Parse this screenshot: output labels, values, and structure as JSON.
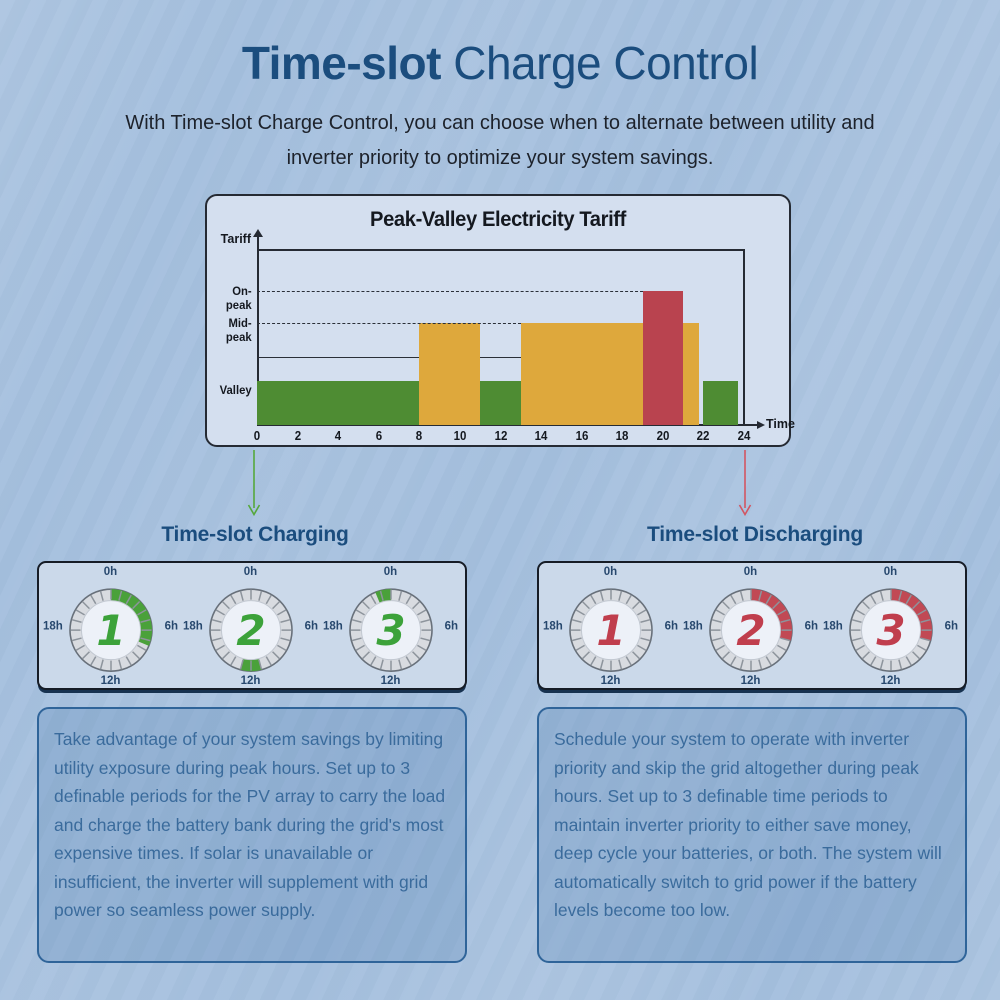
{
  "header": {
    "title_bold": "Time-slot",
    "title_rest": " Charge Control",
    "subtitle_line1": "With Time-slot Charge Control, you can choose when to alternate between utility and",
    "subtitle_line2": "inverter priority to optimize your system savings."
  },
  "chart": {
    "title": "Peak-Valley Electricity Tariff",
    "y_axis_label": "Tariff",
    "x_axis_label": "Time",
    "x_ticks": [
      "0",
      "2",
      "4",
      "6",
      "8",
      "10",
      "12",
      "14",
      "16",
      "18",
      "20",
      "22",
      "24"
    ]
  },
  "chart_data": {
    "type": "bar",
    "title": "Peak-Valley Electricity Tariff",
    "xlabel": "Time",
    "ylabel": "Tariff",
    "x_range": [
      0,
      24
    ],
    "level_labels": [
      "On-peak",
      "Mid-peak",
      "Valley"
    ],
    "level_fraction": {
      "valley": 0.25,
      "flat": 0.386,
      "mid-peak": 0.58,
      "on-peak": 0.764
    },
    "segments": [
      {
        "start": 0,
        "end": 8,
        "level": "valley",
        "color": "#4e8c33"
      },
      {
        "start": 8,
        "end": 11,
        "level": "mid-peak",
        "color": "#dea83c"
      },
      {
        "start": 11,
        "end": 13,
        "level": "valley",
        "color": "#4e8c33"
      },
      {
        "start": 13,
        "end": 19,
        "level": "mid-peak",
        "color": "#dea83c"
      },
      {
        "start": 19,
        "end": 21,
        "level": "on-peak",
        "color": "#b9434f"
      },
      {
        "start": 21,
        "end": 21.8,
        "level": "mid-peak",
        "color": "#dea83c"
      },
      {
        "start": 22,
        "end": 23.7,
        "level": "valley",
        "color": "#4e8c33"
      }
    ],
    "gridlines": [
      {
        "level": "on-peak",
        "from": 0,
        "to": 19,
        "style": "dashed"
      },
      {
        "level": "mid-peak",
        "from": 0,
        "to": 13,
        "style": "dashed"
      },
      {
        "level": "flat",
        "from": 0,
        "to": 8,
        "style": "solid"
      },
      {
        "level": "flat",
        "from": 11,
        "to": 13,
        "style": "solid"
      }
    ],
    "legend": false,
    "grid": "partial-dashed"
  },
  "charging": {
    "heading": "Time-slot Charging",
    "arrow_color": "#56a83c",
    "arc_color": "#4aa13a",
    "number_color": "#3ca23a",
    "dial_labels": {
      "top": "0h",
      "right": "6h",
      "bottom": "12h",
      "left": "18h"
    },
    "dials": [
      {
        "number": "1",
        "arc_start_h": 0,
        "arc_end_h": 7.5
      },
      {
        "number": "2",
        "arc_start_h": 11,
        "arc_end_h": 13
      },
      {
        "number": "3",
        "arc_start_h": 22.5,
        "arc_end_h": 24
      }
    ],
    "description": "Take advantage of your system savings by limiting utility exposure during peak hours. Set up to 3 definable periods for the PV array to carry the load and charge the battery bank during the grid's most expensive times. If solar is unavailable or insufficient, the inverter will supplement with grid power so seamless power supply."
  },
  "discharging": {
    "heading": "Time-slot Discharging",
    "arrow_color": "#d25562",
    "arc_color": "#c14954",
    "number_color": "#c03e4d",
    "dial_labels": {
      "top": "0h",
      "right": "6h",
      "bottom": "12h",
      "left": "18h"
    },
    "dials": [
      {
        "number": "1",
        "arc_start_h": 0,
        "arc_end_h": 0
      },
      {
        "number": "2",
        "arc_start_h": 0,
        "arc_end_h": 7
      },
      {
        "number": "3",
        "arc_start_h": 0,
        "arc_end_h": 7
      }
    ],
    "description": "Schedule your system to operate with inverter priority and skip the grid altogether during peak hours. Set up to 3 definable time periods to maintain inverter priority to either save money, deep cycle your batteries, or both. The system will automatically switch to grid power if the battery levels become too low."
  },
  "colors": {
    "page_background": "#a5c0de",
    "title_blue": "#1b4d7e",
    "chart_panel_bg": "#d4dfef",
    "bar_green": "#4e8c33",
    "bar_yellow": "#dea83c",
    "bar_red": "#b9434f",
    "body_text_blue": "#3a6b9c",
    "dial_ring": "#d8dbe0",
    "dial_face": "#edf1f8"
  }
}
